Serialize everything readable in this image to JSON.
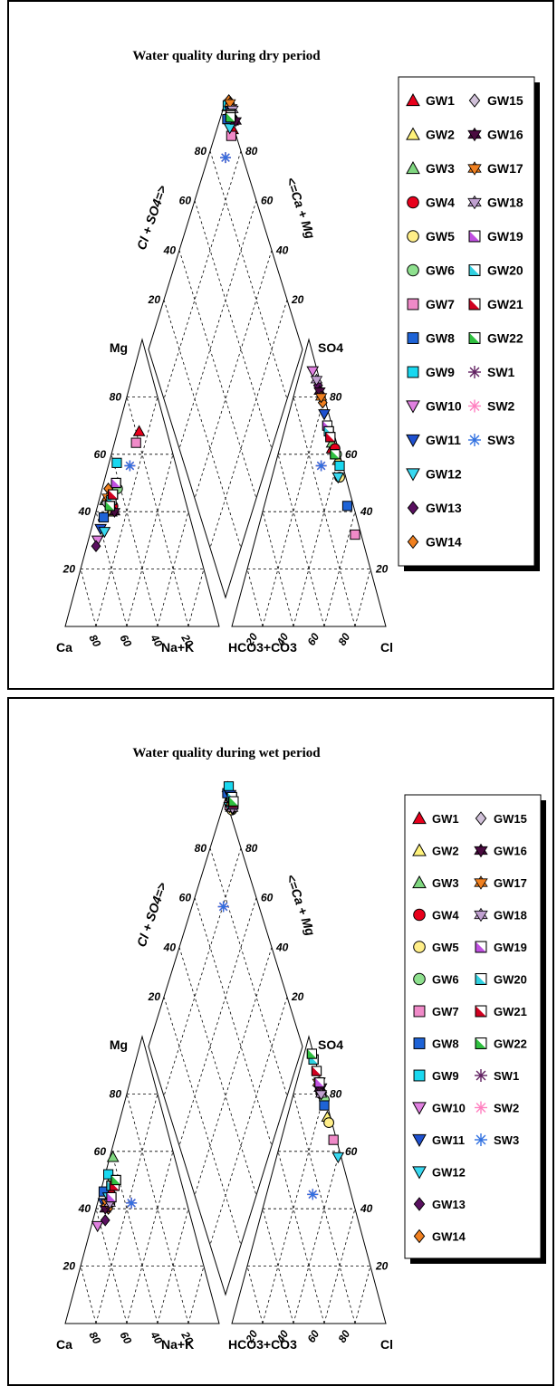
{
  "palette": {
    "GW1": "#e8001c",
    "GW2": "#fff27a",
    "GW3": "#7fd67f",
    "GW4": "#e8001c",
    "GW5": "#ffee88",
    "GW6": "#8ee08e",
    "GW7": "#f08ac8",
    "GW8": "#1e63d6",
    "GW9": "#19d8f0",
    "GW10": "#e080e0",
    "GW11": "#1e50d0",
    "GW12": "#38d8f0",
    "GW13": "#5a1060",
    "GW14": "#f08020",
    "GW15": "#d0c0d8",
    "GW16": "#4a0a40",
    "GW17": "#f08020",
    "GW18": "#c0a0d0",
    "GW19": "#c050e0",
    "GW20": "#30d0e0",
    "GW21": "#d00020",
    "GW22": "#30c040",
    "SW1": "#602060",
    "SW2": "#ff80c0",
    "SW3": "#3070e0"
  },
  "chart_data": [
    {
      "type": "piper",
      "title": "Water quality during dry period",
      "cation_axis_labels": {
        "top": "Mg",
        "left": "Ca",
        "right": "Na+K"
      },
      "anion_axis_labels": {
        "top": "SO4",
        "left": "HCO3+CO3",
        "right": "Cl"
      },
      "diamond_axis_labels": {
        "left": "Cl + SO4=>",
        "right": "<=Ca + Mg"
      },
      "tick_labels": [
        "20",
        "40",
        "60",
        "80"
      ],
      "legend_col1": [
        {
          "name": "GW1",
          "marker": "triangle-up"
        },
        {
          "name": "GW2",
          "marker": "triangle-up"
        },
        {
          "name": "GW3",
          "marker": "triangle-up"
        },
        {
          "name": "GW4",
          "marker": "circle"
        },
        {
          "name": "GW5",
          "marker": "circle"
        },
        {
          "name": "GW6",
          "marker": "circle"
        },
        {
          "name": "GW7",
          "marker": "square"
        },
        {
          "name": "GW8",
          "marker": "square"
        },
        {
          "name": "GW9",
          "marker": "square"
        },
        {
          "name": "GW10",
          "marker": "triangle-down"
        },
        {
          "name": "GW11",
          "marker": "triangle-down"
        },
        {
          "name": "GW12",
          "marker": "triangle-down"
        },
        {
          "name": "GW13",
          "marker": "diamond"
        },
        {
          "name": "GW14",
          "marker": "diamond"
        }
      ],
      "legend_col2": [
        {
          "name": "GW15",
          "marker": "diamond"
        },
        {
          "name": "GW16",
          "marker": "star6"
        },
        {
          "name": "GW17",
          "marker": "star6"
        },
        {
          "name": "GW18",
          "marker": "star6"
        },
        {
          "name": "GW19",
          "marker": "half-square"
        },
        {
          "name": "GW20",
          "marker": "half-square"
        },
        {
          "name": "GW21",
          "marker": "half-square"
        },
        {
          "name": "GW22",
          "marker": "half-square"
        },
        {
          "name": "SW1",
          "marker": "asterisk"
        },
        {
          "name": "SW2",
          "marker": "asterisk"
        },
        {
          "name": "SW3",
          "marker": "asterisk"
        }
      ],
      "samples": [
        {
          "name": "GW1",
          "ca": 18,
          "mg": 68,
          "so4": 62,
          "cl": 34
        },
        {
          "name": "GW2",
          "ca": 50,
          "mg": 40,
          "so4": 58,
          "cl": 40
        },
        {
          "name": "GW3",
          "ca": 52,
          "mg": 44,
          "so4": 64,
          "cl": 33
        },
        {
          "name": "GW4",
          "ca": 48,
          "mg": 42,
          "so4": 62,
          "cl": 36
        },
        {
          "name": "GW5",
          "ca": 46,
          "mg": 47,
          "so4": 52,
          "cl": 44
        },
        {
          "name": "GW6",
          "ca": 42,
          "mg": 48,
          "so4": 60,
          "cl": 38
        },
        {
          "name": "GW7",
          "ca": 22,
          "mg": 64,
          "so4": 32,
          "cl": 64
        },
        {
          "name": "GW8",
          "ca": 56,
          "mg": 38,
          "so4": 42,
          "cl": 54
        },
        {
          "name": "GW9",
          "ca": 38,
          "mg": 57,
          "so4": 56,
          "cl": 42
        },
        {
          "name": "GW10",
          "ca": 64,
          "mg": 30,
          "so4": 89,
          "cl": 8
        },
        {
          "name": "GW11",
          "ca": 60,
          "mg": 34,
          "so4": 74,
          "cl": 23
        },
        {
          "name": "GW12",
          "ca": 58,
          "mg": 33,
          "so4": 52,
          "cl": 43
        },
        {
          "name": "GW13",
          "ca": 66,
          "mg": 28,
          "so4": 84,
          "cl": 14
        },
        {
          "name": "GW14",
          "ca": 48,
          "mg": 48,
          "so4": 78,
          "cl": 20
        },
        {
          "name": "GW15",
          "ca": 52,
          "mg": 43,
          "so4": 80,
          "cl": 18
        },
        {
          "name": "GW16",
          "ca": 48,
          "mg": 40,
          "so4": 82,
          "cl": 16
        },
        {
          "name": "GW17",
          "ca": 50,
          "mg": 45,
          "so4": 80,
          "cl": 18
        },
        {
          "name": "GW18",
          "ca": 48,
          "mg": 44,
          "so4": 86,
          "cl": 12
        },
        {
          "name": "GW19",
          "ca": 42,
          "mg": 50,
          "so4": 70,
          "cl": 27
        },
        {
          "name": "GW20",
          "ca": 48,
          "mg": 44,
          "so4": 68,
          "cl": 29
        },
        {
          "name": "GW21",
          "ca": 46,
          "mg": 46,
          "so4": 66,
          "cl": 31
        },
        {
          "name": "GW22",
          "ca": 50,
          "mg": 42,
          "so4": 60,
          "cl": 37
        },
        {
          "name": "SW1",
          "ca": 30,
          "mg": 56,
          "so4": 56,
          "cl": 30
        },
        {
          "name": "SW2",
          "ca": 30,
          "mg": 56,
          "so4": 56,
          "cl": 30
        },
        {
          "name": "SW3",
          "ca": 30,
          "mg": 56,
          "so4": 56,
          "cl": 30
        }
      ]
    },
    {
      "type": "piper",
      "title": "Water quality during wet period",
      "cation_axis_labels": {
        "top": "Mg",
        "left": "Ca",
        "right": "Na+K"
      },
      "anion_axis_labels": {
        "top": "SO4",
        "left": "HCO3+CO3",
        "right": "Cl"
      },
      "diamond_axis_labels": {
        "left": "Cl + SO4=>",
        "right": "<=Ca + Mg"
      },
      "tick_labels": [
        "20",
        "40",
        "60",
        "80"
      ],
      "legend_col1": [
        {
          "name": "GW1",
          "marker": "triangle-up"
        },
        {
          "name": "GW2",
          "marker": "triangle-up"
        },
        {
          "name": "GW3",
          "marker": "triangle-up"
        },
        {
          "name": "GW4",
          "marker": "circle"
        },
        {
          "name": "GW5",
          "marker": "circle"
        },
        {
          "name": "GW6",
          "marker": "circle"
        },
        {
          "name": "GW7",
          "marker": "square"
        },
        {
          "name": "GW8",
          "marker": "square"
        },
        {
          "name": "GW9",
          "marker": "square"
        },
        {
          "name": "GW10",
          "marker": "triangle-down"
        },
        {
          "name": "GW11",
          "marker": "triangle-down"
        },
        {
          "name": "GW12",
          "marker": "triangle-down"
        },
        {
          "name": "GW13",
          "marker": "diamond"
        },
        {
          "name": "GW14",
          "marker": "diamond"
        }
      ],
      "legend_col2": [
        {
          "name": "GW15",
          "marker": "diamond"
        },
        {
          "name": "GW16",
          "marker": "star6"
        },
        {
          "name": "GW17",
          "marker": "star6"
        },
        {
          "name": "GW18",
          "marker": "star6"
        },
        {
          "name": "GW19",
          "marker": "half-square"
        },
        {
          "name": "GW20",
          "marker": "half-square"
        },
        {
          "name": "GW21",
          "marker": "half-square"
        },
        {
          "name": "GW22",
          "marker": "half-square"
        },
        {
          "name": "SW1",
          "marker": "asterisk"
        },
        {
          "name": "SW2",
          "marker": "asterisk"
        },
        {
          "name": "SW3",
          "marker": "asterisk"
        }
      ],
      "samples": [
        {
          "name": "GW1",
          "ca": 48,
          "mg": 46,
          "so4": 84,
          "cl": 15
        },
        {
          "name": "GW2",
          "ca": 50,
          "mg": 43,
          "so4": 72,
          "cl": 26
        },
        {
          "name": "GW3",
          "ca": 40,
          "mg": 58,
          "so4": 82,
          "cl": 17
        },
        {
          "name": "GW4",
          "ca": 48,
          "mg": 45,
          "so4": 80,
          "cl": 18
        },
        {
          "name": "GW5",
          "ca": 50,
          "mg": 42,
          "so4": 70,
          "cl": 28
        },
        {
          "name": "GW6",
          "ca": 44,
          "mg": 50,
          "so4": 78,
          "cl": 21
        },
        {
          "name": "GW7",
          "ca": 46,
          "mg": 48,
          "so4": 64,
          "cl": 34
        },
        {
          "name": "GW8",
          "ca": 52,
          "mg": 46,
          "so4": 76,
          "cl": 22
        },
        {
          "name": "GW9",
          "ca": 46,
          "mg": 52,
          "so4": 92,
          "cl": 7
        },
        {
          "name": "GW10",
          "ca": 62,
          "mg": 34,
          "so4": 82,
          "cl": 17
        },
        {
          "name": "GW11",
          "ca": 54,
          "mg": 42,
          "so4": 84,
          "cl": 15
        },
        {
          "name": "GW12",
          "ca": 50,
          "mg": 44,
          "so4": 58,
          "cl": 40
        },
        {
          "name": "GW13",
          "ca": 56,
          "mg": 36,
          "so4": 80,
          "cl": 18
        },
        {
          "name": "GW14",
          "ca": 52,
          "mg": 40,
          "so4": 80,
          "cl": 18
        },
        {
          "name": "GW15",
          "ca": 52,
          "mg": 42,
          "so4": 82,
          "cl": 16
        },
        {
          "name": "GW16",
          "ca": 54,
          "mg": 40,
          "so4": 82,
          "cl": 16
        },
        {
          "name": "GW17",
          "ca": 52,
          "mg": 42,
          "so4": 84,
          "cl": 14
        },
        {
          "name": "GW18",
          "ca": 50,
          "mg": 42,
          "so4": 80,
          "cl": 18
        },
        {
          "name": "GW19",
          "ca": 48,
          "mg": 44,
          "so4": 84,
          "cl": 15
        },
        {
          "name": "GW20",
          "ca": 46,
          "mg": 48,
          "so4": 92,
          "cl": 7
        },
        {
          "name": "GW21",
          "ca": 44,
          "mg": 48,
          "so4": 88,
          "cl": 11
        },
        {
          "name": "GW22",
          "ca": 42,
          "mg": 50,
          "so4": 94,
          "cl": 5
        },
        {
          "name": "SW1",
          "ca": 36,
          "mg": 42,
          "so4": 45,
          "cl": 30
        },
        {
          "name": "SW2",
          "ca": 36,
          "mg": 42,
          "so4": 45,
          "cl": 30
        },
        {
          "name": "SW3",
          "ca": 36,
          "mg": 42,
          "so4": 45,
          "cl": 30
        }
      ]
    }
  ]
}
